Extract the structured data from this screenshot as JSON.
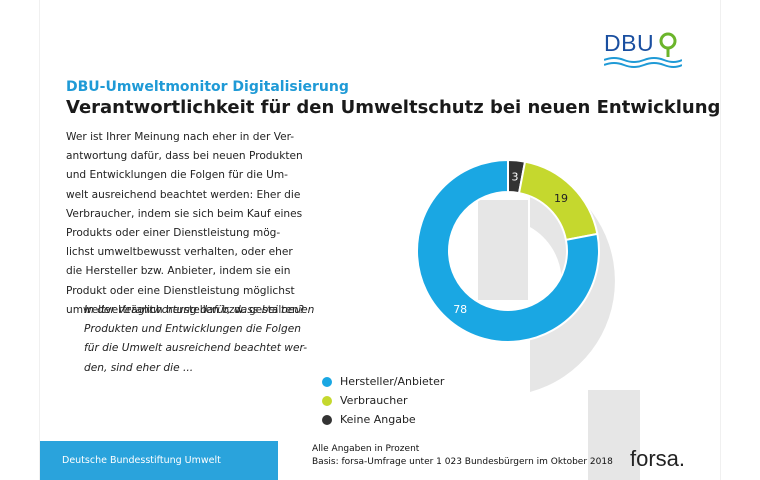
{
  "colors": {
    "accent": "#1f9ad6",
    "hersteller": "#1aa7e3",
    "verbraucher": "#c5d82e",
    "keine": "#333333",
    "footer_bar": "#2aa3dc"
  },
  "logo": {
    "text": "DBU"
  },
  "header": {
    "kicker": "DBU-Umweltmonitor Digitalisierung",
    "title": "Verantwortlichkeit für den Umweltschutz bei neuen Entwicklungen"
  },
  "question": {
    "lines": [
      "Wer ist Ihrer Meinung nach eher in der Ver-",
      "antwortung dafür, dass bei neuen Produkten",
      "und Entwicklungen die Folgen für die Um-",
      "welt ausreichend beachtet werden: Eher die",
      "Verbraucher, indem sie sich beim Kauf eines",
      "Produkts oder einer Dienstleistung mög-",
      "lichst umweltbewusst verhalten, oder eher",
      "die Hersteller bzw. Anbieter, indem sie ein",
      "Produkt oder eine Dienstleistung möglichst",
      "umweltverträglich herstellen bzw. gestalten?"
    ]
  },
  "intro": {
    "lines": [
      "In der Verantwortung dafür, dass bei neuen",
      "Produkten und Entwicklungen die Folgen",
      "für die Umwelt ausreichend beachtet wer-",
      "den, sind eher die ..."
    ]
  },
  "chart_data": {
    "type": "pie",
    "donut": true,
    "slices": [
      {
        "label": "Hersteller/Anbieter",
        "value": 78,
        "color": "#1aa7e3"
      },
      {
        "label": "Verbraucher",
        "value": 19,
        "color": "#c5d82e"
      },
      {
        "label": "Keine Angabe",
        "value": 3,
        "color": "#333333"
      }
    ],
    "legend_position": "bottom"
  },
  "footer": {
    "org": "Deutsche Bundesstiftung Umwelt",
    "note_line1": "Alle Angaben in Prozent",
    "note_line2": "Basis: forsa-Umfrage unter 1 023 Bundesbürgern im Oktober 2018",
    "forsa": "forsa."
  }
}
